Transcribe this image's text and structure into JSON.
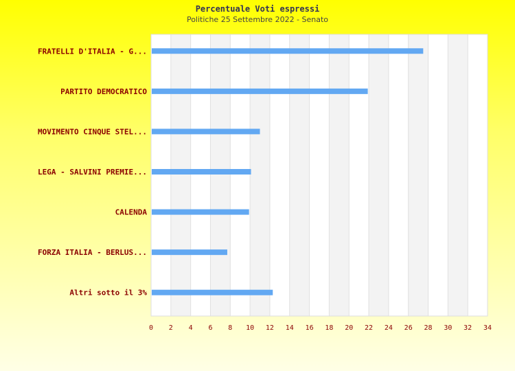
{
  "chart_data": {
    "type": "bar",
    "orientation": "horizontal",
    "title": "Percentuale Voti espressi",
    "subtitle": "Politiche 25 Settembre 2022 - Senato",
    "categories": [
      "FRATELLI D'ITALIA - G...",
      "PARTITO DEMOCRATICO",
      "MOVIMENTO CINQUE STEL...",
      "LEGA - SALVINI PREMIE...",
      "CALENDA",
      "FORZA ITALIA - BERLUS...",
      "Altri sotto il 3%"
    ],
    "values": [
      27.5,
      21.9,
      11.0,
      10.1,
      9.9,
      7.7,
      12.3
    ],
    "xlim": [
      0,
      34
    ],
    "xticks": [
      0,
      2,
      4,
      6,
      8,
      10,
      12,
      14,
      16,
      18,
      20,
      22,
      24,
      26,
      28,
      30,
      32,
      34
    ],
    "xlabel": "",
    "ylabel": "",
    "grid": true,
    "colors": {
      "bar": "#62a8f2",
      "label": "#8b0000",
      "band": "#f3f3f3",
      "grid": "#e0e0e0"
    }
  }
}
